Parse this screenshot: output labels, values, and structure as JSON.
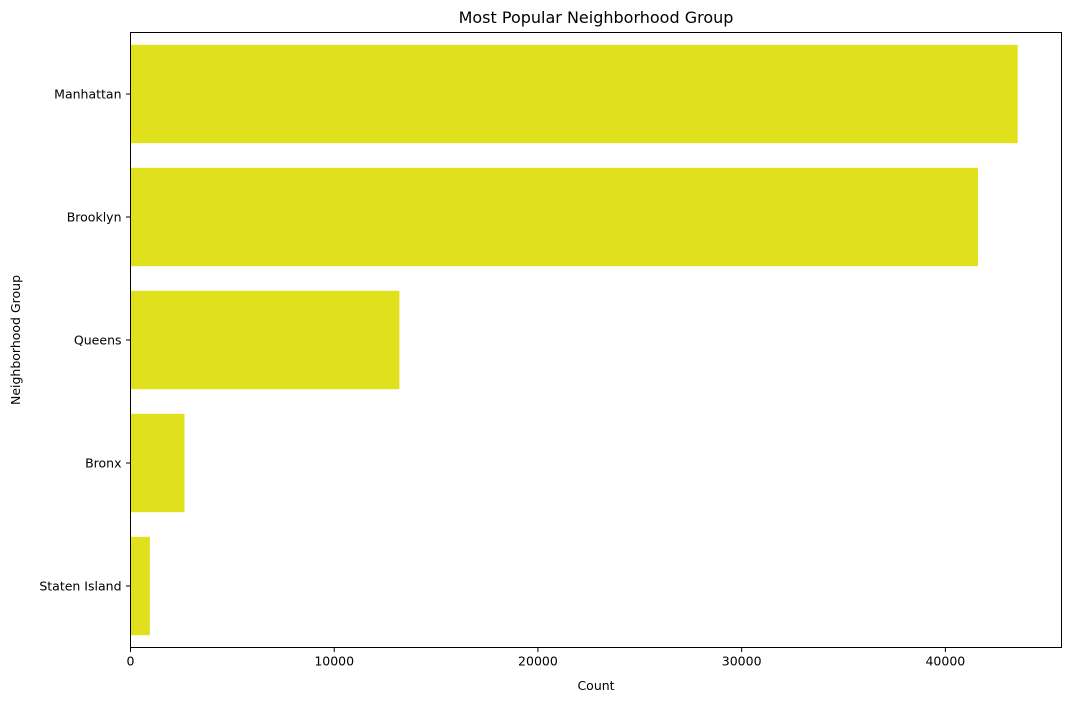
{
  "chart_data": {
    "type": "bar",
    "orientation": "horizontal",
    "title": "Most Popular Neighborhood Group",
    "xlabel": "Count",
    "ylabel": "Neighborhood Group",
    "categories": [
      "Manhattan",
      "Brooklyn",
      "Queens",
      "Bronx",
      "Staten Island"
    ],
    "values": [
      43550,
      41600,
      13200,
      2650,
      950
    ],
    "xlim": [
      0,
      45700
    ],
    "xticks": [
      0,
      10000,
      20000,
      30000,
      40000
    ],
    "xtick_labels": [
      "0",
      "10000",
      "20000",
      "30000",
      "40000"
    ],
    "grid": false,
    "bar_color": "#e0e01d"
  }
}
